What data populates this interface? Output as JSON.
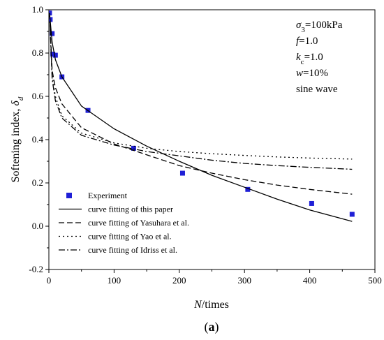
{
  "chart_data": {
    "type": "line",
    "xlabel": "N/times",
    "ylabel": "Softening index, δd",
    "xlim": [
      0,
      500
    ],
    "ylim": [
      -0.2,
      1.0
    ],
    "x_ticks": [
      0,
      100,
      200,
      300,
      400,
      500
    ],
    "y_ticks": [
      -0.2,
      0.0,
      0.2,
      0.4,
      0.6,
      0.8,
      1.0
    ],
    "x_tick_labels": [
      "0",
      "100",
      "200",
      "300",
      "400",
      "500"
    ],
    "y_tick_labels": [
      "-0.2",
      "0.0",
      "0.2",
      "0.4",
      "0.6",
      "0.8",
      "1.0"
    ],
    "grid": false,
    "legend_position": "bottom-left",
    "annotations": [
      {
        "base": "σ",
        "sub": "3",
        "rest": "=100kPa"
      },
      {
        "base": "f",
        "sub": "",
        "rest": "=1.0"
      },
      {
        "base": "k",
        "sub": "c",
        "rest": "=1.0"
      },
      {
        "base": "w",
        "sub": "",
        "rest": "=10%"
      },
      {
        "base": "sine wave",
        "sub": "",
        "rest": ""
      }
    ],
    "caption": "(a)",
    "series": [
      {
        "name": "Experiment",
        "kind": "scatter",
        "color": "#1f1fd6",
        "x": [
          1,
          2,
          5,
          6,
          10,
          20,
          60,
          130,
          205,
          305,
          403,
          465
        ],
        "y": [
          0.985,
          0.955,
          0.89,
          0.795,
          0.79,
          0.69,
          0.535,
          0.36,
          0.245,
          0.17,
          0.105,
          0.055
        ]
      },
      {
        "name": "curve fitting of this paper",
        "kind": "line",
        "dash": "solid",
        "x": [
          1,
          5,
          10,
          20,
          50,
          100,
          150,
          200,
          250,
          300,
          350,
          400,
          465
        ],
        "y": [
          0.985,
          0.85,
          0.77,
          0.69,
          0.555,
          0.45,
          0.37,
          0.3,
          0.235,
          0.18,
          0.125,
          0.075,
          0.022
        ]
      },
      {
        "name": "curve fitting of Yasuhara et al.",
        "kind": "line",
        "dash": "dashed",
        "x": [
          1,
          5,
          10,
          20,
          50,
          100,
          150,
          200,
          250,
          300,
          350,
          400,
          465
        ],
        "y": [
          0.985,
          0.72,
          0.64,
          0.565,
          0.455,
          0.38,
          0.33,
          0.28,
          0.245,
          0.215,
          0.19,
          0.17,
          0.148
        ]
      },
      {
        "name": "curve fitting of Yao et al.",
        "kind": "line",
        "dash": "dotted",
        "x": [
          1,
          5,
          10,
          20,
          50,
          100,
          150,
          200,
          250,
          300,
          350,
          400,
          465
        ],
        "y": [
          0.985,
          0.7,
          0.6,
          0.51,
          0.43,
          0.385,
          0.36,
          0.345,
          0.335,
          0.327,
          0.32,
          0.315,
          0.31
        ]
      },
      {
        "name": "curve fitting of Idriss et al.",
        "kind": "line",
        "dash": "dashdot",
        "x": [
          1,
          5,
          10,
          20,
          50,
          100,
          150,
          200,
          250,
          300,
          350,
          400,
          465
        ],
        "y": [
          0.985,
          0.68,
          0.58,
          0.5,
          0.42,
          0.375,
          0.345,
          0.325,
          0.305,
          0.29,
          0.28,
          0.272,
          0.263
        ]
      }
    ]
  }
}
